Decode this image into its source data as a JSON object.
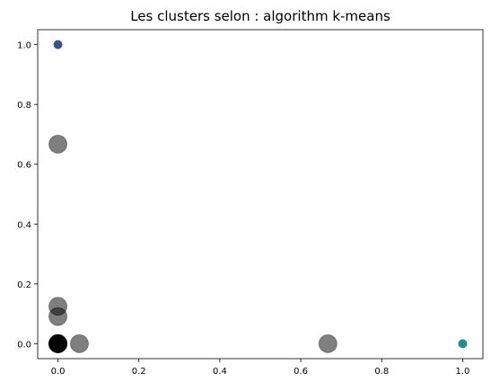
{
  "chart_data": {
    "type": "scatter",
    "title": "Les clusters selon : algorithm k-means",
    "xlabel": "",
    "ylabel": "",
    "xlim": [
      -0.05,
      1.05
    ],
    "ylim": [
      -0.05,
      1.05
    ],
    "xticks": [
      0.0,
      0.2,
      0.4,
      0.6,
      0.8,
      1.0
    ],
    "xtick_labels": [
      "0.0",
      "0.2",
      "0.4",
      "0.6",
      "0.8",
      "1.0"
    ],
    "yticks": [
      0.0,
      0.2,
      0.4,
      0.6,
      0.8,
      1.0
    ],
    "ytick_labels": [
      "0.0",
      "0.2",
      "0.4",
      "0.6",
      "0.8",
      "1.0"
    ],
    "grid": false,
    "legend": "none",
    "series": [
      {
        "role": "data-points",
        "points": [
          {
            "x": 0.0,
            "y": 1.0,
            "color": "#3b528b"
          },
          {
            "x": 1.0,
            "y": 0.0,
            "color": "#21908d"
          }
        ]
      },
      {
        "role": "cluster-centers",
        "color": "#000000",
        "alpha": 0.5,
        "points": [
          {
            "x": 0.0,
            "y": 0.667
          },
          {
            "x": 0.0,
            "y": 0.125
          },
          {
            "x": 0.0,
            "y": 0.091
          },
          {
            "x": 0.0,
            "y": 0.0
          },
          {
            "x": 0.0,
            "y": 0.0
          },
          {
            "x": 0.0,
            "y": 0.0
          },
          {
            "x": 0.0,
            "y": 0.0
          },
          {
            "x": 0.0,
            "y": 0.0
          },
          {
            "x": 0.0,
            "y": 0.0
          },
          {
            "x": 0.053,
            "y": 0.0
          },
          {
            "x": 0.667,
            "y": 0.0
          }
        ]
      }
    ]
  }
}
